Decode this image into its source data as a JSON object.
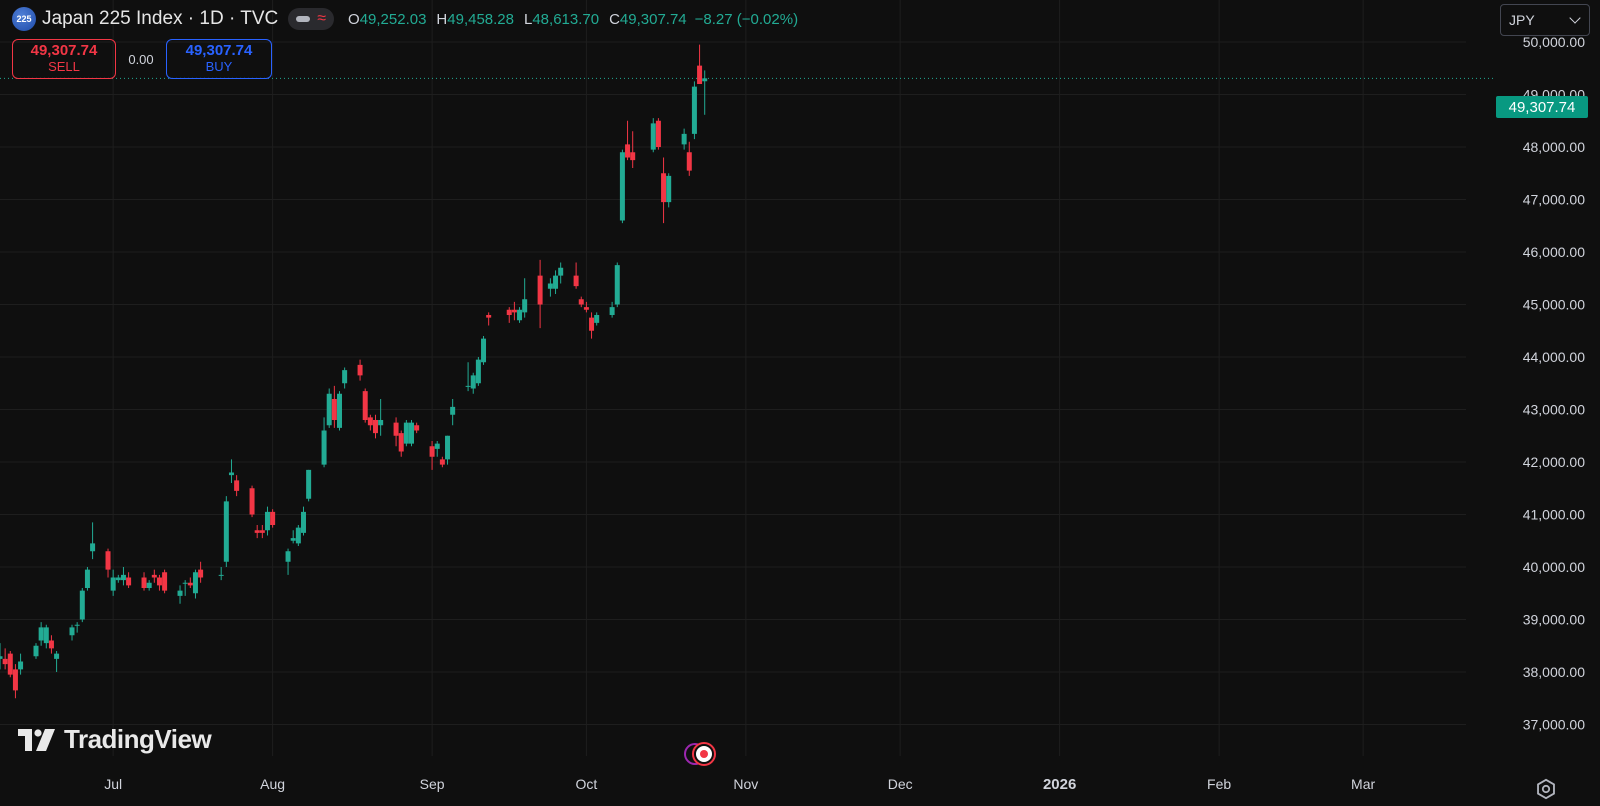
{
  "header": {
    "symbol_badge": "225",
    "title": "Japan 225 Index · 1D · TVC",
    "ohlc": {
      "o_label": "O",
      "o": "49,252.03",
      "h_label": "H",
      "h": "49,458.28",
      "l_label": "L",
      "l": "48,613.70",
      "c_label": "C",
      "c": "49,307.74",
      "change": "−8.27 (−0.02%)"
    }
  },
  "trade": {
    "sell_price": "49,307.74",
    "sell_label": "SELL",
    "spread": "0.00",
    "buy_price": "49,307.74",
    "buy_label": "BUY"
  },
  "currency": {
    "selected": "JPY"
  },
  "last_price_label": "49,307.74",
  "brand": {
    "name": "TradingView"
  },
  "colors": {
    "up": "#22ab94",
    "down": "#f23645",
    "background": "#0f0f0f",
    "grid": "#1e1e1e",
    "buy": "#2962ff"
  },
  "icons": [
    "settings-gear-icon",
    "events-icon",
    "tradingview-logo-icon"
  ],
  "chart_data": {
    "type": "candlestick",
    "title": "Japan 225 Index · 1D · TVC",
    "currency": "JPY",
    "y_ticks": [
      "37,000.00",
      "38,000.00",
      "39,000.00",
      "40,000.00",
      "41,000.00",
      "42,000.00",
      "43,000.00",
      "44,000.00",
      "45,000.00",
      "46,000.00",
      "47,000.00",
      "48,000.00",
      "49,000.00",
      "50,000.00"
    ],
    "x_ticks": [
      {
        "label": "Jul",
        "date": "2025-07-01"
      },
      {
        "label": "Aug",
        "date": "2025-08-01"
      },
      {
        "label": "Sep",
        "date": "2025-09-01"
      },
      {
        "label": "Oct",
        "date": "2025-10-01"
      },
      {
        "label": "Nov",
        "date": "2025-11-01"
      },
      {
        "label": "Dec",
        "date": "2025-12-01"
      },
      {
        "label": "2026",
        "date": "2026-01-01",
        "bold": true
      },
      {
        "label": "Feb",
        "date": "2026-02-01"
      },
      {
        "label": "Mar",
        "date": "2026-03-01"
      }
    ],
    "ylim": [
      36400,
      50800
    ],
    "xlim": [
      "2025-06-09",
      "2026-03-21"
    ],
    "last_price": 49307.74,
    "candles": [
      {
        "d": "2025-06-09",
        "o": 38250,
        "h": 38550,
        "l": 38050,
        "c": 38300
      },
      {
        "d": "2025-06-10",
        "o": 38250,
        "h": 38450,
        "l": 38050,
        "c": 38150
      },
      {
        "d": "2025-06-11",
        "o": 38350,
        "h": 38400,
        "l": 37900,
        "c": 37950
      },
      {
        "d": "2025-06-12",
        "o": 38050,
        "h": 38150,
        "l": 37500,
        "c": 37650
      },
      {
        "d": "2025-06-13",
        "o": 38050,
        "h": 38350,
        "l": 37950,
        "c": 38200
      },
      {
        "d": "2025-06-16",
        "o": 38300,
        "h": 38550,
        "l": 38250,
        "c": 38500
      },
      {
        "d": "2025-06-17",
        "o": 38600,
        "h": 38950,
        "l": 38500,
        "c": 38850
      },
      {
        "d": "2025-06-18",
        "o": 38550,
        "h": 38900,
        "l": 38450,
        "c": 38850
      },
      {
        "d": "2025-06-19",
        "o": 38600,
        "h": 38700,
        "l": 38350,
        "c": 38450
      },
      {
        "d": "2025-06-20",
        "o": 38250,
        "h": 38400,
        "l": 38000,
        "c": 38350
      },
      {
        "d": "2025-06-23",
        "o": 38700,
        "h": 38900,
        "l": 38600,
        "c": 38850
      },
      {
        "d": "2025-06-24",
        "o": 38900,
        "h": 38950,
        "l": 38750,
        "c": 38900
      },
      {
        "d": "2025-06-25",
        "o": 39000,
        "h": 39600,
        "l": 38950,
        "c": 39550
      },
      {
        "d": "2025-06-26",
        "o": 39600,
        "h": 40000,
        "l": 39550,
        "c": 39950
      },
      {
        "d": "2025-06-27",
        "o": 40300,
        "h": 40850,
        "l": 40150,
        "c": 40450
      },
      {
        "d": "2025-06-30",
        "o": 40300,
        "h": 40350,
        "l": 39800,
        "c": 39950
      },
      {
        "d": "2025-07-01",
        "o": 39550,
        "h": 39950,
        "l": 39450,
        "c": 39800
      },
      {
        "d": "2025-07-02",
        "o": 39750,
        "h": 39850,
        "l": 39700,
        "c": 39800
      },
      {
        "d": "2025-07-03",
        "o": 39750,
        "h": 40000,
        "l": 39650,
        "c": 39850
      },
      {
        "d": "2025-07-04",
        "o": 39800,
        "h": 39900,
        "l": 39600,
        "c": 39650
      },
      {
        "d": "2025-07-07",
        "o": 39800,
        "h": 39900,
        "l": 39550,
        "c": 39600
      },
      {
        "d": "2025-07-08",
        "o": 39600,
        "h": 39750,
        "l": 39550,
        "c": 39700
      },
      {
        "d": "2025-07-09",
        "o": 39850,
        "h": 39950,
        "l": 39700,
        "c": 39800
      },
      {
        "d": "2025-07-10",
        "o": 39800,
        "h": 39850,
        "l": 39550,
        "c": 39650
      },
      {
        "d": "2025-07-11",
        "o": 39900,
        "h": 39950,
        "l": 39500,
        "c": 39550
      },
      {
        "d": "2025-07-14",
        "o": 39450,
        "h": 39650,
        "l": 39300,
        "c": 39550
      },
      {
        "d": "2025-07-15",
        "o": 39700,
        "h": 39750,
        "l": 39450,
        "c": 39700
      },
      {
        "d": "2025-07-16",
        "o": 39700,
        "h": 39800,
        "l": 39600,
        "c": 39650
      },
      {
        "d": "2025-07-17",
        "o": 39500,
        "h": 39950,
        "l": 39400,
        "c": 39900
      },
      {
        "d": "2025-07-18",
        "o": 39950,
        "h": 40100,
        "l": 39700,
        "c": 39800
      },
      {
        "d": "2025-07-22",
        "o": 39850,
        "h": 40000,
        "l": 39750,
        "c": 39850
      },
      {
        "d": "2025-07-23",
        "o": 40100,
        "h": 41350,
        "l": 40000,
        "c": 41250
      },
      {
        "d": "2025-07-24",
        "o": 41750,
        "h": 42050,
        "l": 41600,
        "c": 41800
      },
      {
        "d": "2025-07-25",
        "o": 41650,
        "h": 41750,
        "l": 41350,
        "c": 41450
      },
      {
        "d": "2025-07-28",
        "o": 41500,
        "h": 41550,
        "l": 40950,
        "c": 41000
      },
      {
        "d": "2025-07-29",
        "o": 40700,
        "h": 40800,
        "l": 40550,
        "c": 40650
      },
      {
        "d": "2025-07-30",
        "o": 40700,
        "h": 40800,
        "l": 40550,
        "c": 40650
      },
      {
        "d": "2025-07-31",
        "o": 40700,
        "h": 41150,
        "l": 40600,
        "c": 41050
      },
      {
        "d": "2025-08-01",
        "o": 41050,
        "h": 41100,
        "l": 40750,
        "c": 40800
      },
      {
        "d": "2025-08-04",
        "o": 40100,
        "h": 40350,
        "l": 39850,
        "c": 40300
      },
      {
        "d": "2025-08-05",
        "o": 40500,
        "h": 40700,
        "l": 40450,
        "c": 40550
      },
      {
        "d": "2025-08-06",
        "o": 40450,
        "h": 40800,
        "l": 40400,
        "c": 40750
      },
      {
        "d": "2025-08-07",
        "o": 40650,
        "h": 41150,
        "l": 40600,
        "c": 41050
      },
      {
        "d": "2025-08-08",
        "o": 41300,
        "h": 41850,
        "l": 41250,
        "c": 41850
      },
      {
        "d": "2025-08-11",
        "o": 41950,
        "h": 42850,
        "l": 41900,
        "c": 42600
      },
      {
        "d": "2025-08-12",
        "o": 42700,
        "h": 43400,
        "l": 42650,
        "c": 43300
      },
      {
        "d": "2025-08-13",
        "o": 43200,
        "h": 43450,
        "l": 42650,
        "c": 42800
      },
      {
        "d": "2025-08-14",
        "o": 42650,
        "h": 43350,
        "l": 42600,
        "c": 43300
      },
      {
        "d": "2025-08-15",
        "o": 43500,
        "h": 43800,
        "l": 43400,
        "c": 43750
      },
      {
        "d": "2025-08-18",
        "o": 43850,
        "h": 43950,
        "l": 43550,
        "c": 43650
      },
      {
        "d": "2025-08-19",
        "o": 43350,
        "h": 43400,
        "l": 42750,
        "c": 42800
      },
      {
        "d": "2025-08-20",
        "o": 42850,
        "h": 42900,
        "l": 42600,
        "c": 42700
      },
      {
        "d": "2025-08-21",
        "o": 42800,
        "h": 42900,
        "l": 42450,
        "c": 42550
      },
      {
        "d": "2025-08-22",
        "o": 42700,
        "h": 43200,
        "l": 42500,
        "c": 42800
      },
      {
        "d": "2025-08-25",
        "o": 42750,
        "h": 42850,
        "l": 42300,
        "c": 42500
      },
      {
        "d": "2025-08-26",
        "o": 42550,
        "h": 42600,
        "l": 42100,
        "c": 42200
      },
      {
        "d": "2025-08-27",
        "o": 42350,
        "h": 42800,
        "l": 42300,
        "c": 42750
      },
      {
        "d": "2025-08-28",
        "o": 42350,
        "h": 42800,
        "l": 42300,
        "c": 42750
      },
      {
        "d": "2025-08-29",
        "o": 42700,
        "h": 42750,
        "l": 42550,
        "c": 42600
      },
      {
        "d": "2025-09-01",
        "o": 42300,
        "h": 42400,
        "l": 41850,
        "c": 42100
      },
      {
        "d": "2025-09-02",
        "o": 42250,
        "h": 42400,
        "l": 42100,
        "c": 42350
      },
      {
        "d": "2025-09-03",
        "o": 42050,
        "h": 42100,
        "l": 41900,
        "c": 41950
      },
      {
        "d": "2025-09-04",
        "o": 42050,
        "h": 42500,
        "l": 41950,
        "c": 42500
      },
      {
        "d": "2025-09-05",
        "o": 42900,
        "h": 43200,
        "l": 42700,
        "c": 43050
      },
      {
        "d": "2025-09-08",
        "o": 43450,
        "h": 43900,
        "l": 43350,
        "c": 43450
      },
      {
        "d": "2025-09-09",
        "o": 43400,
        "h": 43700,
        "l": 43300,
        "c": 43650
      },
      {
        "d": "2025-09-10",
        "o": 43500,
        "h": 44000,
        "l": 43450,
        "c": 43950
      },
      {
        "d": "2025-09-11",
        "o": 43900,
        "h": 44400,
        "l": 43850,
        "c": 44350
      },
      {
        "d": "2025-09-12",
        "o": 44800,
        "h": 44850,
        "l": 44600,
        "c": 44750
      },
      {
        "d": "2025-09-16",
        "o": 44900,
        "h": 44950,
        "l": 44650,
        "c": 44800
      },
      {
        "d": "2025-09-17",
        "o": 44900,
        "h": 45050,
        "l": 44700,
        "c": 44850
      },
      {
        "d": "2025-09-18",
        "o": 44700,
        "h": 44950,
        "l": 44650,
        "c": 44900
      },
      {
        "d": "2025-09-19",
        "o": 44850,
        "h": 45500,
        "l": 44750,
        "c": 45100
      },
      {
        "d": "2025-09-22",
        "o": 45550,
        "h": 45850,
        "l": 44550,
        "c": 45000
      },
      {
        "d": "2025-09-24",
        "o": 45300,
        "h": 45500,
        "l": 45150,
        "c": 45400
      },
      {
        "d": "2025-09-25",
        "o": 45300,
        "h": 45650,
        "l": 45200,
        "c": 45550
      },
      {
        "d": "2025-09-26",
        "o": 45550,
        "h": 45800,
        "l": 45400,
        "c": 45700
      },
      {
        "d": "2025-09-29",
        "o": 45550,
        "h": 45800,
        "l": 45300,
        "c": 45350
      },
      {
        "d": "2025-09-30",
        "o": 45100,
        "h": 45150,
        "l": 44950,
        "c": 45000
      },
      {
        "d": "2025-10-01",
        "o": 44950,
        "h": 45050,
        "l": 44850,
        "c": 44900
      },
      {
        "d": "2025-10-02",
        "o": 44750,
        "h": 44850,
        "l": 44350,
        "c": 44500
      },
      {
        "d": "2025-10-03",
        "o": 44650,
        "h": 44850,
        "l": 44600,
        "c": 44800
      },
      {
        "d": "2025-10-06",
        "o": 44800,
        "h": 45050,
        "l": 44750,
        "c": 44950
      },
      {
        "d": "2025-10-07",
        "o": 45000,
        "h": 45800,
        "l": 44950,
        "c": 45750
      },
      {
        "d": "2025-10-08",
        "o": 46600,
        "h": 47950,
        "l": 46550,
        "c": 47900
      },
      {
        "d": "2025-10-09",
        "o": 48050,
        "h": 48500,
        "l": 47750,
        "c": 47800
      },
      {
        "d": "2025-10-10",
        "o": 47900,
        "h": 48300,
        "l": 47600,
        "c": 47750
      },
      {
        "d": "2025-10-14",
        "o": 47950,
        "h": 48550,
        "l": 47900,
        "c": 48450
      },
      {
        "d": "2025-10-15",
        "o": 48500,
        "h": 48550,
        "l": 47950,
        "c": 48000
      },
      {
        "d": "2025-10-16",
        "o": 47500,
        "h": 47800,
        "l": 46550,
        "c": 46950
      },
      {
        "d": "2025-10-17",
        "o": 46950,
        "h": 47500,
        "l": 46850,
        "c": 47450
      },
      {
        "d": "2025-10-20",
        "o": 48050,
        "h": 48350,
        "l": 47950,
        "c": 48250
      },
      {
        "d": "2025-10-21",
        "o": 47900,
        "h": 48100,
        "l": 47450,
        "c": 47550
      },
      {
        "d": "2025-10-22",
        "o": 48250,
        "h": 49250,
        "l": 48150,
        "c": 49150
      },
      {
        "d": "2025-10-23",
        "o": 49550,
        "h": 49950,
        "l": 49200,
        "c": 49200
      },
      {
        "d": "2025-10-24",
        "o": 49252.03,
        "h": 49458.28,
        "l": 48613.7,
        "c": 49307.74
      }
    ]
  }
}
